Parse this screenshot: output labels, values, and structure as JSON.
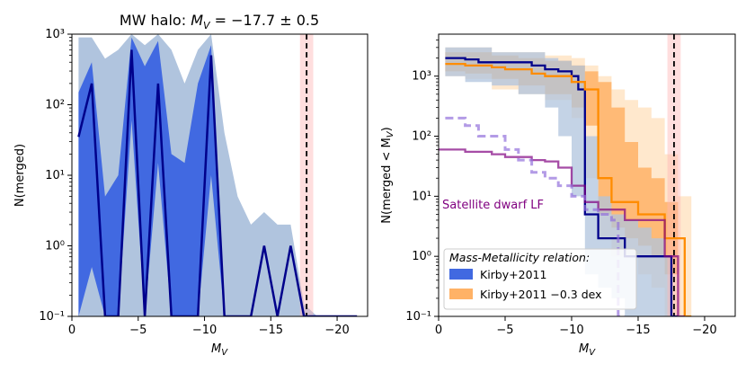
{
  "chart_data": [
    {
      "type": "line",
      "title_prefix": "MW halo: ",
      "title_math": "M",
      "title_sub": "V",
      "title_suffix": " = −17.7 ± 0.5",
      "xlabel": "M",
      "xlabel_sub": "V",
      "ylabel": "N(merged)",
      "yscale": "log",
      "xlim": [
        0,
        -22.3
      ],
      "ylim": [
        0.1,
        1000
      ],
      "xticks": [
        0,
        -5,
        -10,
        -15,
        -20
      ],
      "xtick_labels": [
        "0",
        "−5",
        "−10",
        "−15",
        "−20"
      ],
      "yticks": [
        0.1,
        1,
        10,
        100,
        1000
      ],
      "ytick_labels": [
        "10⁻¹",
        "10⁰",
        "10¹",
        "10²",
        "10³"
      ],
      "vline": -17.7,
      "vband": [
        -17.2,
        -18.2
      ],
      "x": [
        -0.5,
        -1.5,
        -2.5,
        -3.5,
        -4.5,
        -5.5,
        -6.5,
        -7.5,
        -8.5,
        -9.5,
        -10.5,
        -11.5,
        -12.5,
        -13.5,
        -14.5,
        -15.5,
        -16.5,
        -17.5,
        -18.5,
        -19.5,
        -20.5,
        -21.5
      ],
      "series": [
        {
          "name": "median",
          "color": "#00008b",
          "values": [
            35,
            200,
            0.1,
            0.1,
            600,
            0.1,
            200,
            0.1,
            0.1,
            0.1,
            500,
            0.1,
            0.1,
            0.1,
            1.0,
            0.1,
            1.0,
            0.1,
            0.1,
            0.1,
            0.1,
            0.1
          ]
        }
      ],
      "bands": [
        {
          "name": "outer",
          "color": "#b0c4de",
          "lower": [
            0.1,
            0.1,
            0.1,
            0.1,
            0.1,
            0.1,
            0.1,
            0.1,
            0.1,
            0.1,
            0.1,
            0.1,
            0.1,
            0.1,
            0.1,
            0.1,
            0.1,
            0.1,
            0.1,
            0.1,
            0.1,
            0.1
          ],
          "upper": [
            900,
            900,
            450,
            600,
            1000,
            700,
            1000,
            600,
            200,
            600,
            1000,
            40,
            5,
            2,
            3,
            2,
            2,
            0.15,
            0.1,
            0.1,
            0.1,
            0.1
          ]
        },
        {
          "name": "inner",
          "color": "#4169e1",
          "lower": [
            0.1,
            0.5,
            0.1,
            0.1,
            60,
            0.1,
            15,
            0.1,
            0.1,
            0.1,
            10,
            0.1,
            0.1,
            0.1,
            0.1,
            0.1,
            0.1,
            0.1,
            0.1,
            0.1,
            0.1,
            0.1
          ],
          "upper": [
            150,
            400,
            5,
            10,
            900,
            350,
            800,
            20,
            15,
            200,
            700,
            0.1,
            0.1,
            0.1,
            0.1,
            0.1,
            0.1,
            0.1,
            0.1,
            0.1,
            0.1,
            0.1
          ]
        }
      ]
    },
    {
      "type": "line",
      "xlabel": "M",
      "xlabel_sub": "V",
      "ylabel": "N(merged < M",
      "ylabel_sub": "V",
      "ylabel_close": ")",
      "yscale": "log",
      "xlim": [
        0,
        -22.3
      ],
      "ylim": [
        0.1,
        5000
      ],
      "xticks": [
        0,
        -5,
        -10,
        -15,
        -20
      ],
      "xtick_labels": [
        "0",
        "−5",
        "−10",
        "−15",
        "−20"
      ],
      "yticks": [
        0.1,
        1,
        10,
        100,
        1000
      ],
      "ytick_labels": [
        "10⁻¹",
        "10⁰",
        "10¹",
        "10²",
        "10³"
      ],
      "vline": -17.7,
      "vband": [
        -17.2,
        -18.2
      ],
      "annotation": "Satellite dwarf LF",
      "legend": {
        "title": "Mass-Metallicity relation:",
        "entries": [
          {
            "label": "Kirby+2011",
            "color": "#4169e1"
          },
          {
            "label": "Kirby+2011 −0.3 dex",
            "color": "#ff8c00"
          }
        ]
      },
      "series": [
        {
          "name": "Kirby+2011 median",
          "color": "#00008b",
          "x": [
            -0.5,
            -2,
            -3,
            -6,
            -7,
            -8,
            -9,
            -10,
            -10.5,
            -11,
            -12,
            -13,
            -14,
            -15,
            -16,
            -17,
            -17.5
          ],
          "values": [
            2000,
            1900,
            1700,
            1700,
            1500,
            1300,
            1200,
            1000,
            600,
            5,
            2,
            2,
            1,
            1,
            1,
            1,
            0.1
          ]
        },
        {
          "name": "Kirby+2011 -0.3 dex median",
          "color": "#ff8c00",
          "x": [
            -0.5,
            -2,
            -4,
            -5,
            -7,
            -8,
            -10,
            -11,
            -12,
            -13,
            -14,
            -15,
            -16,
            -17,
            -17.5,
            -18,
            -18.5
          ],
          "values": [
            1600,
            1500,
            1400,
            1300,
            1100,
            1000,
            800,
            600,
            20,
            8,
            8,
            5,
            5,
            2,
            2,
            2,
            0.1
          ]
        },
        {
          "name": "Satellite dwarf LF",
          "color": "#800080",
          "x": [
            0,
            -2,
            -4,
            -5,
            -7,
            -8,
            -9,
            -10,
            -11,
            -12,
            -13,
            -14,
            -15,
            -16,
            -17,
            -18
          ],
          "values": [
            60,
            55,
            50,
            45,
            40,
            38,
            30,
            15,
            8,
            6,
            6,
            4,
            4,
            4,
            1,
            0.1
          ]
        },
        {
          "name": "Satellite dwarf LF (alt)",
          "color": "#9370db",
          "dashed": true,
          "x": [
            -0.5,
            -2,
            -3,
            -5,
            -6,
            -7,
            -8,
            -9,
            -10,
            -11,
            -12,
            -13,
            -13.5
          ],
          "values": [
            200,
            150,
            100,
            60,
            40,
            25,
            20,
            15,
            10,
            6,
            5,
            4,
            0.1
          ]
        }
      ],
      "bands": [
        {
          "name": "orange-outer",
          "color": "#ffe4c4",
          "x": [
            -0.5,
            -2,
            -4,
            -6,
            -8,
            -10,
            -11,
            -12,
            -13,
            -14,
            -15,
            -16,
            -17,
            -18,
            -19
          ],
          "lower": [
            1000,
            900,
            600,
            500,
            400,
            200,
            20,
            2,
            1,
            1,
            0.5,
            0.3,
            0.1,
            0.1,
            0.1
          ],
          "upper": [
            3000,
            3000,
            2500,
            2500,
            2200,
            2000,
            1500,
            1000,
            600,
            400,
            300,
            200,
            50,
            10,
            0.1
          ]
        },
        {
          "name": "orange-inner",
          "color": "#ffb266",
          "x": [
            -0.5,
            -2,
            -4,
            -6,
            -8,
            -10,
            -11,
            -12,
            -13,
            -14,
            -15,
            -16,
            -17,
            -18
          ],
          "lower": [
            1200,
            1100,
            900,
            700,
            500,
            300,
            150,
            5,
            3,
            2,
            1.5,
            1,
            0.5,
            0.1
          ],
          "upper": [
            2500,
            2500,
            2200,
            2000,
            1800,
            1500,
            1200,
            800,
            300,
            80,
            30,
            20,
            8,
            0.1
          ]
        },
        {
          "name": "blue-outer",
          "color": "#b0c4de",
          "x": [
            -0.5,
            -2,
            -4,
            -6,
            -8,
            -9,
            -10,
            -11,
            -12,
            -13,
            -14,
            -15,
            -16,
            -17,
            -17.5
          ],
          "lower": [
            1000,
            800,
            700,
            500,
            300,
            100,
            10,
            0.5,
            0.3,
            0.2,
            0.1,
            0.1,
            0.1,
            0.1,
            0.1
          ],
          "upper": [
            3000,
            3000,
            2500,
            2500,
            2000,
            1800,
            1500,
            100,
            10,
            5,
            4,
            3,
            2,
            1,
            0.1
          ]
        }
      ]
    }
  ]
}
